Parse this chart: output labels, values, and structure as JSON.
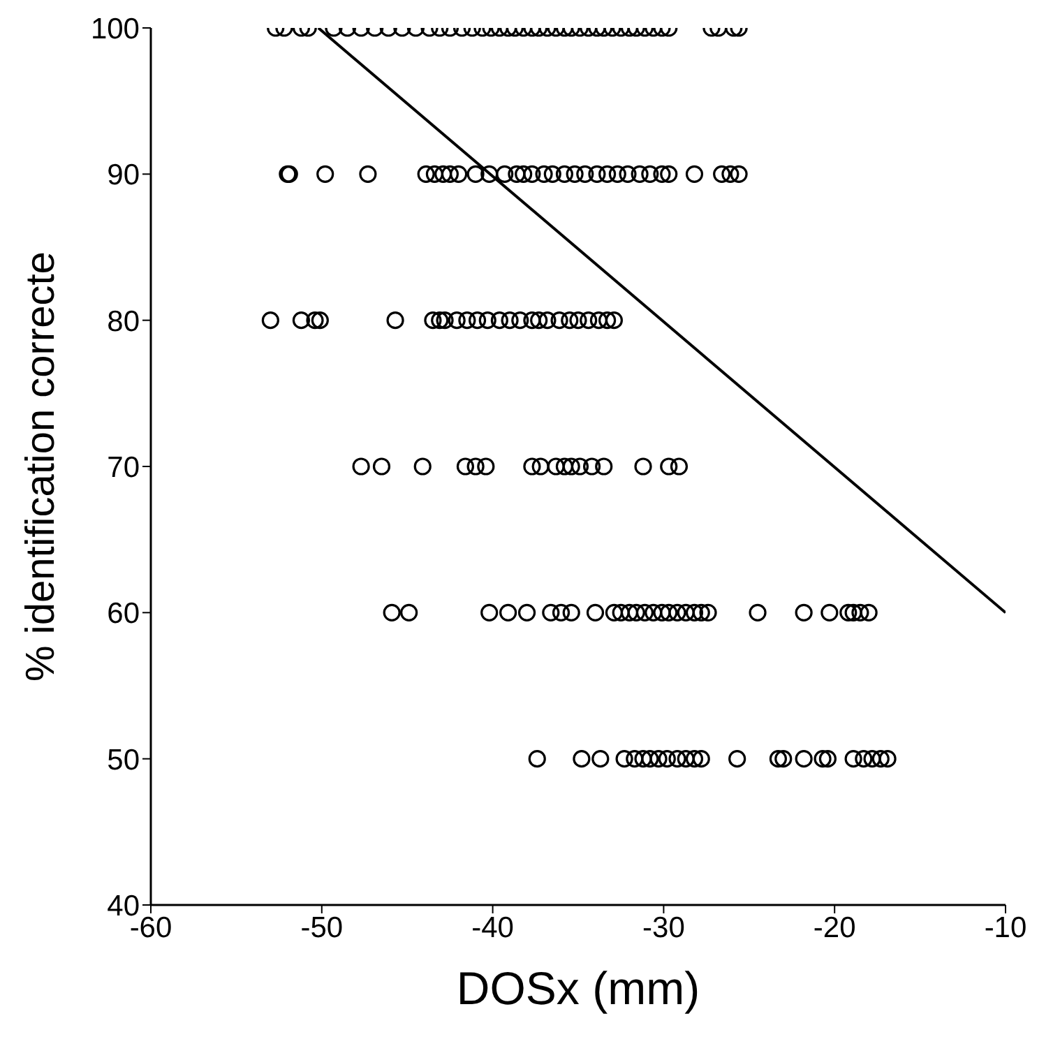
{
  "chart_data": {
    "type": "scatter",
    "xlabel": "DOSx (mm)",
    "ylabel": "% identification correcte",
    "xlim": [
      -60,
      -10
    ],
    "xticks": [
      -60,
      -50,
      -40,
      -30,
      -20,
      -10
    ],
    "ylim": [
      40,
      100
    ],
    "yticks": [
      40,
      50,
      60,
      70,
      80,
      90,
      100
    ],
    "grid": false,
    "legend": false,
    "series": [
      {
        "color": "#000000",
        "marker": "circle",
        "x": [
          -52.7,
          -52.2,
          -51.2,
          -50.8,
          -49.3,
          -48.5,
          -47.7,
          -46.9,
          -46.1,
          -45.3,
          -44.5,
          -43.7,
          -43.1,
          -42.5,
          -41.8,
          -41.2,
          -40.6,
          -40.1,
          -39.6,
          -39.1,
          -38.7,
          -38.2,
          -37.7,
          -37.3,
          -36.8,
          -36.3,
          -35.8,
          -35.4,
          -34.9,
          -34.4,
          -33.9,
          -33.5,
          -33.0,
          -32.5,
          -32.0,
          -31.6,
          -31.1,
          -30.6,
          -30.1,
          -29.7,
          -27.2,
          -26.8,
          -25.9,
          -25.6,
          -52.0,
          -51.9,
          -49.8,
          -47.3,
          -43.9,
          -43.4,
          -42.9,
          -42.5,
          -42.0,
          -41.0,
          -40.2,
          -39.3,
          -38.6,
          -38.2,
          -37.7,
          -37.0,
          -36.5,
          -35.8,
          -35.2,
          -34.6,
          -33.9,
          -33.3,
          -32.7,
          -32.1,
          -31.4,
          -30.8,
          -30.1,
          -29.7,
          -28.2,
          -26.6,
          -26.1,
          -25.6,
          -53.0,
          -51.2,
          -50.4,
          -50.1,
          -45.7,
          -43.5,
          -43.1,
          -42.8,
          -42.1,
          -41.5,
          -40.9,
          -40.3,
          -39.6,
          -39.0,
          -38.4,
          -37.7,
          -37.3,
          -36.8,
          -36.1,
          -35.5,
          -35.0,
          -34.4,
          -33.8,
          -33.3,
          -32.9,
          -47.7,
          -46.5,
          -44.1,
          -41.6,
          -41.0,
          -40.4,
          -37.7,
          -37.2,
          -36.3,
          -35.8,
          -35.4,
          -34.9,
          -34.2,
          -33.5,
          -31.2,
          -29.7,
          -29.1,
          -45.9,
          -44.9,
          -40.2,
          -39.1,
          -38.0,
          -36.6,
          -36.0,
          -35.4,
          -34.0,
          -32.9,
          -32.5,
          -32.0,
          -31.6,
          -31.1,
          -30.6,
          -30.1,
          -29.7,
          -29.2,
          -28.7,
          -28.2,
          -27.8,
          -27.4,
          -24.5,
          -21.8,
          -20.3,
          -19.2,
          -18.9,
          -18.5,
          -18.0,
          -37.4,
          -34.8,
          -33.7,
          -32.3,
          -31.7,
          -31.2,
          -30.8,
          -30.3,
          -29.8,
          -29.2,
          -28.7,
          -28.2,
          -27.8,
          -25.7,
          -23.3,
          -23.0,
          -21.8,
          -20.7,
          -20.4,
          -18.9,
          -18.3,
          -17.8,
          -17.3,
          -16.9
        ],
        "values": [
          100,
          100,
          100,
          100,
          100,
          100,
          100,
          100,
          100,
          100,
          100,
          100,
          100,
          100,
          100,
          100,
          100,
          100,
          100,
          100,
          100,
          100,
          100,
          100,
          100,
          100,
          100,
          100,
          100,
          100,
          100,
          100,
          100,
          100,
          100,
          100,
          100,
          100,
          100,
          100,
          100,
          100,
          100,
          100,
          90,
          90,
          90,
          90,
          90,
          90,
          90,
          90,
          90,
          90,
          90,
          90,
          90,
          90,
          90,
          90,
          90,
          90,
          90,
          90,
          90,
          90,
          90,
          90,
          90,
          90,
          90,
          90,
          90,
          90,
          90,
          90,
          80,
          80,
          80,
          80,
          80,
          80,
          80,
          80,
          80,
          80,
          80,
          80,
          80,
          80,
          80,
          80,
          80,
          80,
          80,
          80,
          80,
          80,
          80,
          80,
          80,
          70,
          70,
          70,
          70,
          70,
          70,
          70,
          70,
          70,
          70,
          70,
          70,
          70,
          70,
          70,
          70,
          70,
          60,
          60,
          60,
          60,
          60,
          60,
          60,
          60,
          60,
          60,
          60,
          60,
          60,
          60,
          60,
          60,
          60,
          60,
          60,
          60,
          60,
          60,
          60,
          60,
          60,
          60,
          60,
          60,
          60,
          50,
          50,
          50,
          50,
          50,
          50,
          50,
          50,
          50,
          50,
          50,
          50,
          50,
          50,
          50,
          50,
          50,
          50,
          50,
          50,
          50,
          50,
          50,
          50
        ]
      },
      {
        "type": "line",
        "color": "#000000",
        "line_style": "solid",
        "x": [
          -50.2,
          -10
        ],
        "values": [
          100,
          60
        ]
      }
    ]
  }
}
